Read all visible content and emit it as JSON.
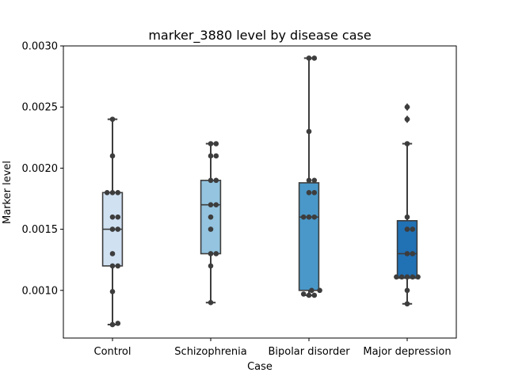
{
  "chart_data": {
    "type": "box",
    "title": "marker_3880 level by disease case",
    "xlabel": "Case",
    "ylabel": "Marker level",
    "ylim": [
      0.00061,
      0.003
    ],
    "yticks": [
      "0.0010",
      "0.0015",
      "0.0020",
      "0.0025",
      "0.0030"
    ],
    "grid": false,
    "categories": [
      "Control",
      "Schizophrenia",
      "Bipolar disorder",
      "Major depression"
    ],
    "colors": [
      "#d0e1f2",
      "#94c4df",
      "#4a98c9",
      "#2171b5"
    ],
    "boxes": [
      {
        "whisker_low": 0.00072,
        "q1": 0.0012,
        "median": 0.0015,
        "q3": 0.0018,
        "whisker_high": 0.0024,
        "outliers": []
      },
      {
        "whisker_low": 0.0009,
        "q1": 0.0013,
        "median": 0.0017,
        "q3": 0.0019,
        "whisker_high": 0.0022,
        "outliers": []
      },
      {
        "whisker_low": 0.00096,
        "q1": 0.001,
        "median": 0.0016,
        "q3": 0.00188,
        "whisker_high": 0.0029,
        "outliers": []
      },
      {
        "whisker_low": 0.00089,
        "q1": 0.0011,
        "median": 0.0013,
        "q3": 0.00157,
        "whisker_high": 0.0022,
        "outliers": [
          0.0024,
          0.0025
        ]
      }
    ],
    "points": [
      [
        0.0024,
        0.0021,
        0.0018,
        0.0018,
        0.0018,
        0.0016,
        0.0016,
        0.0015,
        0.0015,
        0.0013,
        0.0012,
        0.0012,
        0.00099,
        0.00073,
        0.00072
      ],
      [
        0.0022,
        0.0022,
        0.0021,
        0.0021,
        0.0019,
        0.0019,
        0.0017,
        0.0017,
        0.0016,
        0.0015,
        0.0013,
        0.0013,
        0.0012,
        0.0009
      ],
      [
        0.0029,
        0.0029,
        0.0023,
        0.0019,
        0.0019,
        0.0018,
        0.0018,
        0.0016,
        0.0016,
        0.0016,
        0.001,
        0.001,
        0.00097,
        0.00096,
        0.00096
      ],
      [
        0.0025,
        0.0024,
        0.0022,
        0.0016,
        0.0015,
        0.0015,
        0.0013,
        0.0013,
        0.00111,
        0.00111,
        0.00111,
        0.00111,
        0.00111,
        0.001,
        0.00089
      ]
    ]
  }
}
